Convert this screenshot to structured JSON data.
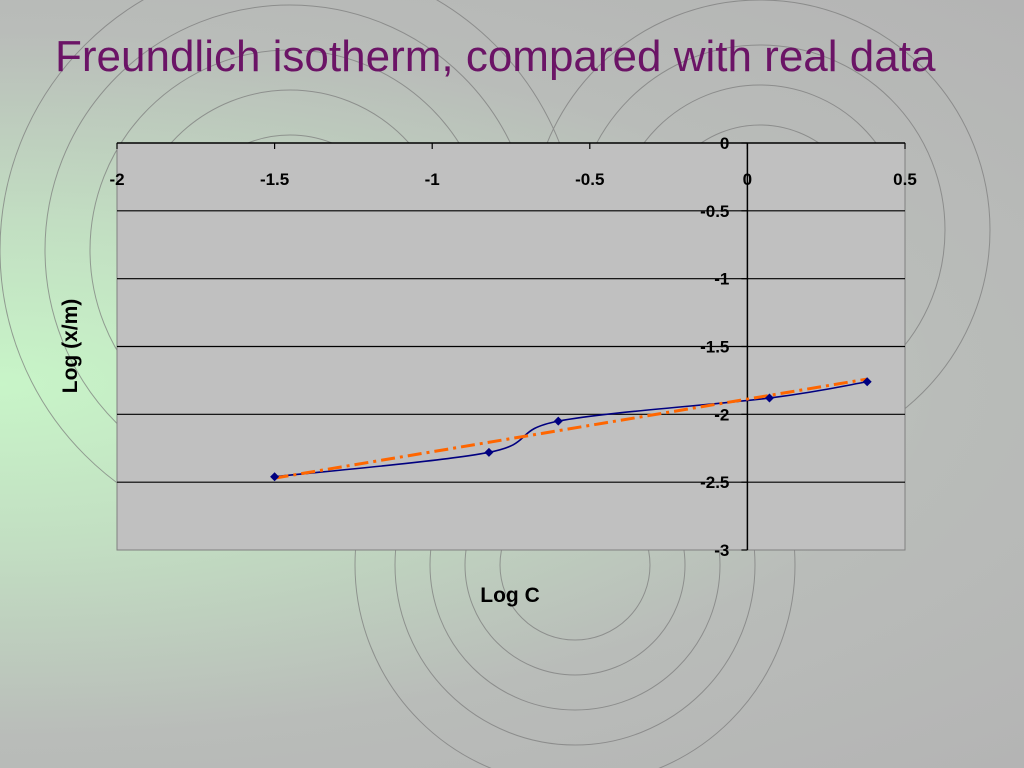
{
  "slide": {
    "title": "Freundlich isotherm, compared with real data"
  },
  "colors": {
    "title": "#6b1466",
    "plot_area": "#c0c0c0",
    "data_line": "#000080",
    "fit_line": "#ff6600"
  },
  "chart_data": {
    "type": "line",
    "xlabel": "Log C",
    "ylabel": "Log (x/m)",
    "xlim": [
      -2,
      0.5
    ],
    "ylim": [
      -3,
      0
    ],
    "x_ticks": [
      -2,
      -1.5,
      -1,
      -0.5,
      0,
      0.5
    ],
    "y_ticks": [
      0,
      -0.5,
      -1,
      -1.5,
      -2,
      -2.5,
      -3
    ],
    "x_tick_labels": [
      "-2",
      "-1.5",
      "-1",
      "-0.5",
      "0",
      "0.5"
    ],
    "y_tick_labels": [
      "0",
      "-0.5",
      "-1",
      "-1.5",
      "-2",
      "-2.5",
      "-3"
    ],
    "grid": "horizontal",
    "legend": "none",
    "series": [
      {
        "style": "smooth line with diamond markers",
        "color": "#000080",
        "points": [
          [
            -1.5,
            -2.46
          ],
          [
            -0.82,
            -2.28
          ],
          [
            -0.6,
            -2.05
          ],
          [
            0.07,
            -1.88
          ],
          [
            0.38,
            -1.76
          ]
        ]
      },
      {
        "style": "dash-dot trend line",
        "color": "#ff6600",
        "points": [
          [
            -1.5,
            -2.47
          ],
          [
            0.38,
            -1.74
          ]
        ]
      }
    ]
  }
}
